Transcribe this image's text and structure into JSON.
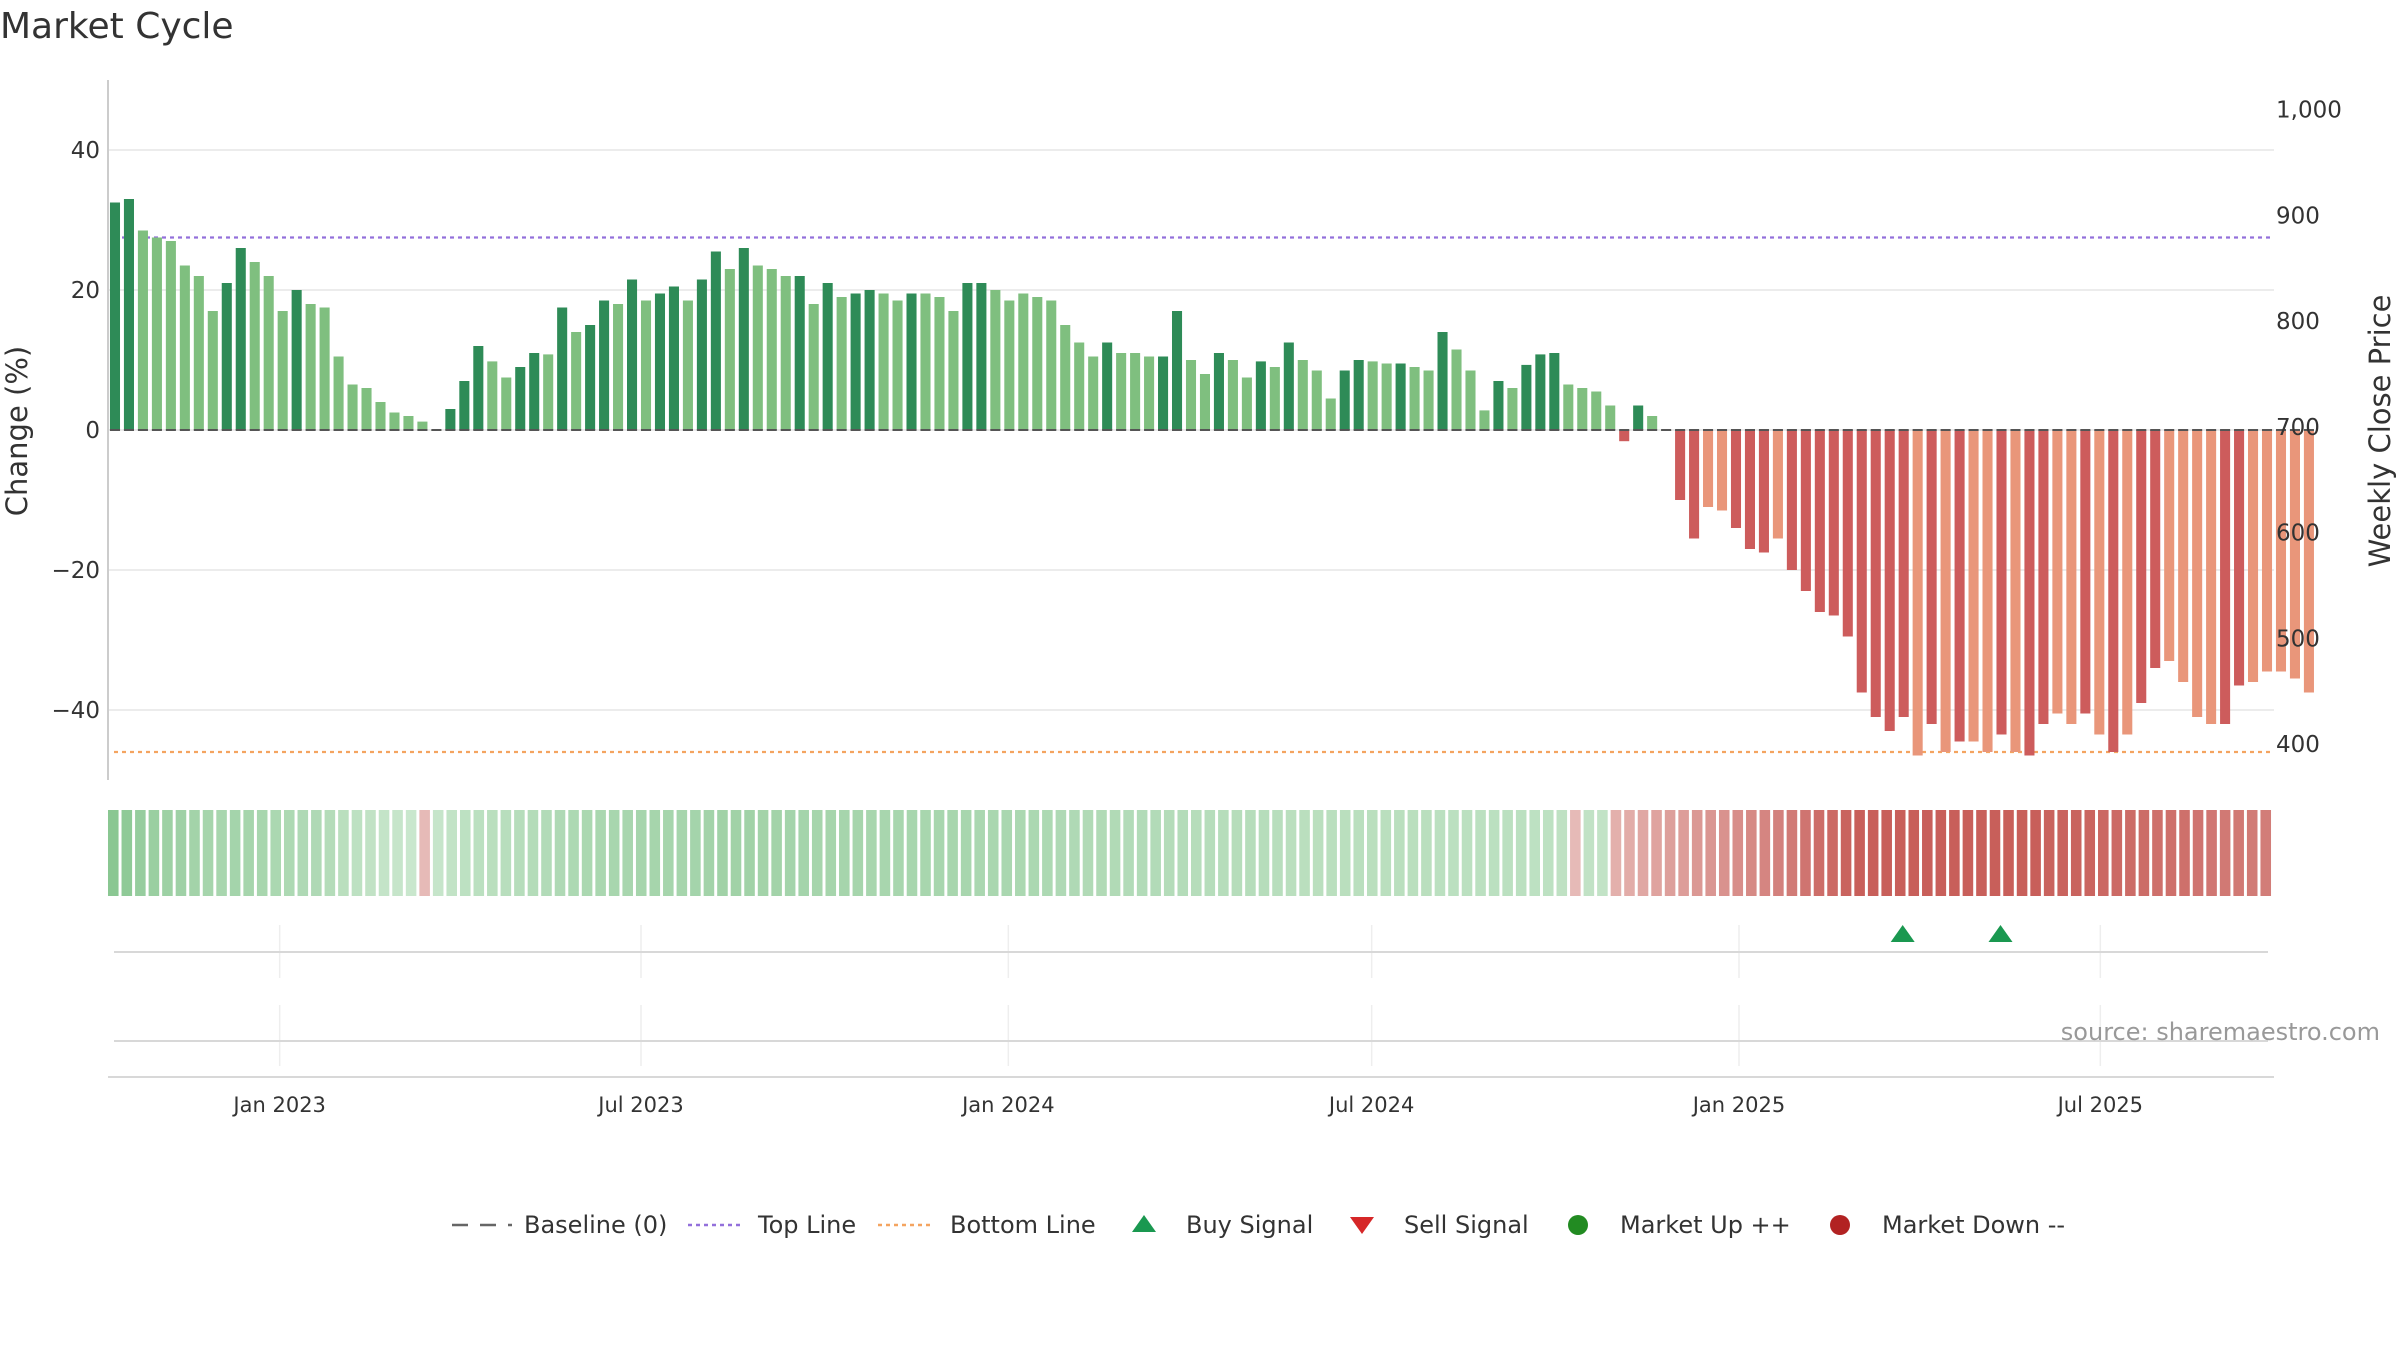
{
  "chart_data": {
    "type": "bar",
    "title": "Market Cycle",
    "ylabel": "Change (%)",
    "y2label": "Weekly Close Price",
    "ylim": [
      -50,
      50
    ],
    "y2lim": [
      366,
      1028
    ],
    "y_ticks": [
      40,
      20,
      0,
      -20,
      -40
    ],
    "y_tick_labels": [
      "40",
      "20",
      "0",
      "−20",
      "−40"
    ],
    "y2_ticks": [
      1000,
      900,
      800,
      700,
      600,
      500,
      400
    ],
    "y2_tick_labels": [
      "1,000",
      "900",
      "800",
      "700",
      "600",
      "500",
      "400"
    ],
    "x_range": [
      "2022-10-07",
      "2025-09-26"
    ],
    "x_ticks": [
      {
        "date": "2023-01-01",
        "label": "Jan 2023"
      },
      {
        "date": "2023-07-01",
        "label": "Jul 2023"
      },
      {
        "date": "2024-01-01",
        "label": "Jan 2024"
      },
      {
        "date": "2024-07-01",
        "label": "Jul 2024"
      },
      {
        "date": "2025-01-01",
        "label": "Jan 2025"
      },
      {
        "date": "2025-07-01",
        "label": "Jul 2025"
      }
    ],
    "top_line": 27.5,
    "bottom_line": -46,
    "baseline": 0,
    "series": [
      {
        "start_date": "2022-10-07",
        "frequency": "weekly",
        "values": [
          32.5,
          33,
          28.5,
          27.5,
          27,
          23.5,
          22,
          17,
          21,
          26,
          24,
          22,
          17,
          20,
          18,
          17.5,
          10.5,
          6.5,
          6,
          4,
          2.5,
          2,
          1.2,
          0,
          3,
          7,
          12,
          9.8,
          7.5,
          9,
          11,
          10.8,
          17.5,
          14,
          15,
          18.5,
          18,
          21.5,
          18.5,
          19.5,
          20.5,
          18.5,
          21.5,
          25.5,
          23,
          26,
          23.5,
          23,
          22,
          22,
          18,
          21,
          19,
          19.5,
          20,
          19.5,
          18.5,
          19.5,
          19.5,
          19,
          17,
          21,
          21,
          20,
          18.5,
          19.5,
          19,
          18.5,
          15,
          12.5,
          10.5,
          12.5,
          11,
          11,
          10.5,
          10.5,
          17,
          10,
          8,
          11,
          10,
          7.5,
          9.8,
          9,
          12.5,
          10,
          8.5,
          4.5,
          8.5,
          10,
          9.8,
          9.5,
          9.5,
          9,
          8.5,
          14,
          11.5,
          8.5,
          2.8,
          7,
          6,
          9.3,
          10.8,
          11,
          6.5,
          6,
          5.5,
          3.5,
          -1.6,
          3.5,
          2,
          0,
          -10,
          -15.5,
          -11,
          -11.5,
          -14,
          -17,
          -17.5,
          -15.5,
          -20,
          -23,
          -26,
          -26.5,
          -29.5,
          -37.5,
          -41,
          -43,
          -41,
          -46.5,
          -42,
          -46,
          -44.5,
          -44.5,
          -46,
          -43.5,
          -46,
          -46.5,
          -42,
          -40.5,
          -42,
          -40.5,
          -43.5,
          -46,
          -43.5,
          -39,
          -34,
          -33,
          -36,
          -41,
          -42,
          -42,
          -36.5,
          -36,
          -34.5,
          -34.5,
          -35.5,
          -37.5
        ],
        "shade": [
          1,
          1,
          0,
          0,
          0,
          0,
          0,
          0,
          1,
          1,
          0,
          0,
          0,
          1,
          0,
          0,
          0,
          0,
          0,
          0,
          0,
          0,
          0,
          0,
          1,
          1,
          1,
          0,
          0,
          1,
          1,
          0,
          1,
          0,
          1,
          1,
          0,
          1,
          0,
          1,
          1,
          0,
          1,
          1,
          0,
          1,
          0,
          0,
          0,
          1,
          0,
          1,
          0,
          1,
          1,
          0,
          0,
          1,
          0,
          0,
          0,
          1,
          1,
          0,
          0,
          0,
          0,
          0,
          0,
          0,
          0,
          1,
          0,
          0,
          0,
          1,
          1,
          0,
          0,
          1,
          0,
          0,
          1,
          0,
          1,
          0,
          0,
          0,
          1,
          1,
          0,
          0,
          1,
          0,
          0,
          1,
          0,
          0,
          0,
          1,
          0,
          1,
          1,
          1,
          0,
          0,
          0,
          0,
          1,
          1,
          0,
          0,
          1,
          1,
          0,
          0,
          1,
          1,
          1,
          0,
          1,
          1,
          1,
          1,
          1,
          1,
          1,
          1,
          1,
          0,
          1,
          0,
          1,
          0,
          0,
          1,
          0,
          1,
          1,
          0,
          0,
          1,
          0,
          1,
          0,
          1,
          1,
          0,
          0,
          0,
          0,
          1,
          1,
          0,
          0,
          0,
          0,
          0,
          0,
          1,
          1
        ]
      }
    ],
    "heat_strip_values": [
      38,
      35,
      31,
      29,
      27,
      26,
      24,
      22,
      21,
      23,
      22,
      21,
      19,
      18,
      17,
      17,
      14,
      11,
      9,
      7,
      5,
      4,
      2,
      -5,
      4,
      6,
      9,
      10,
      11,
      12,
      13,
      14,
      15,
      17,
      18,
      19,
      20,
      21,
      21,
      22,
      22,
      22,
      22,
      23,
      24,
      25,
      25,
      25,
      24,
      24,
      23,
      23,
      22,
      22,
      22,
      22,
      21,
      21,
      21,
      21,
      21,
      21,
      21,
      21,
      20,
      20,
      20,
      19,
      19,
      18,
      17,
      17,
      16,
      16,
      16,
      15,
      15,
      15,
      14,
      14,
      13,
      13,
      13,
      13,
      13,
      13,
      12,
      11,
      11,
      11,
      11,
      11,
      11,
      11,
      11,
      11,
      11,
      11,
      10,
      10,
      10,
      10,
      10,
      10,
      10,
      9,
      9,
      8,
      -5,
      7,
      6,
      -10,
      -12,
      -14,
      -16,
      -18,
      -19,
      -21,
      -22,
      -24,
      -26,
      -28,
      -30,
      -32,
      -35,
      -38,
      -41,
      -43,
      -46,
      -48,
      -48,
      -48,
      -48,
      -48,
      -48,
      -48,
      -48,
      -48,
      -48,
      -48,
      -48,
      -48,
      -48,
      -46,
      -46,
      -46,
      -45,
      -44,
      -43,
      -42,
      -42,
      -40,
      -40,
      -40,
      -38,
      -37,
      -36,
      -36,
      -35,
      -34
    ],
    "buy_signals": [
      "2025-03-24",
      "2025-05-12"
    ],
    "sell_signals": [],
    "market_up_markers": [],
    "market_down_markers": [],
    "legend_position": "bottom-center",
    "legend": [
      {
        "label": "Baseline (0)",
        "marker": "dash"
      },
      {
        "label": "Top Line",
        "marker": "dotted"
      },
      {
        "label": "Bottom Line",
        "marker": "dotted"
      },
      {
        "label": "Buy Signal",
        "marker": "triangle-up"
      },
      {
        "label": "Sell Signal",
        "marker": "triangle-down"
      },
      {
        "label": "Market Up ++",
        "marker": "circle"
      },
      {
        "label": "Market Down --",
        "marker": "circle"
      }
    ],
    "source": "source: sharemaestro.com",
    "grid": true
  },
  "colors": {
    "up_dark": "#2e8b57",
    "up_light": "#7fbf7f",
    "down_dark": "#cd5c5c",
    "down_light": "#e9967a",
    "top_line": "#9370db",
    "bottom_line": "#f4a460",
    "baseline": "#555555",
    "buy": "#1a9850",
    "sell": "#d62728",
    "market_up": "#228b22",
    "market_down": "#b22222",
    "grid": "#e6e6e6"
  }
}
